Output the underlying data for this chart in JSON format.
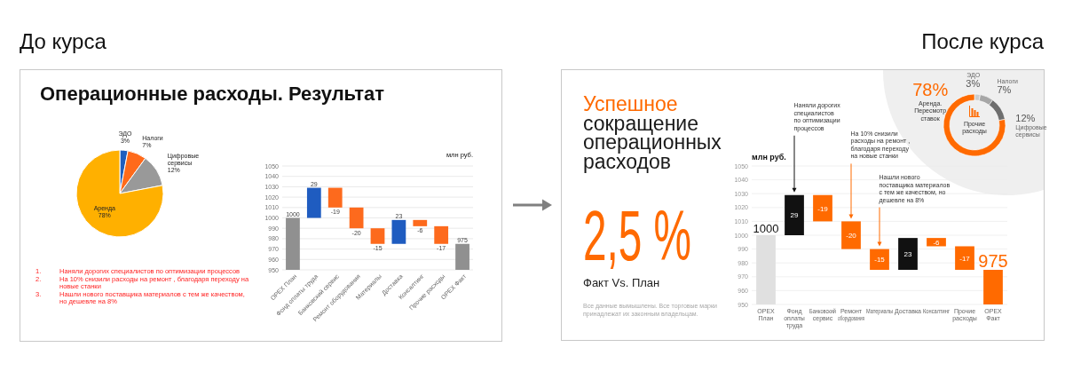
{
  "chart_data": [
    {
      "type": "pie",
      "title": "Операционные расходы. Результат",
      "categories": [
        "ЭДО",
        "Налоги",
        "Цифровые сервисы",
        "Аренда"
      ],
      "values": [
        3,
        7,
        12,
        78
      ],
      "colors": [
        "#1f5fbf",
        "#ff6a1a",
        "#999999",
        "#ffb000"
      ],
      "value_labels": [
        "3%",
        "7%",
        "12%",
        "78%"
      ],
      "annotations": [
        "До курса",
        "1. Наняли дорогих специалистов по оптимизации процессов",
        "2. На 10% снизили расходы на ремонт , благодаря переходу на\nновые станки",
        "3. Нашли нового поставщика материалов с тем же качеством,\nно дешевле на 8%"
      ]
    },
    {
      "type": "bar",
      "categories": [
        "OPEX План",
        "Фонд оплаты труда",
        "Банковский сервис",
        "Ремонт оборудования",
        "Материалы",
        "Доставка",
        "Консалтинг",
        "Прочие расходы",
        "OPEX Факт"
      ],
      "values": [
        1000,
        29,
        -19,
        -20,
        -15,
        23,
        -6,
        -17,
        975
      ],
      "base": [
        null,
        1000,
        1029,
        1010,
        990,
        975,
        998,
        992,
        null
      ],
      "colors": [
        "#909090",
        "#1f5cc0",
        "#fd6a1d",
        "#fd6a1d",
        "#fd6a1d",
        "#1f5cc0",
        "#fd6a1d",
        "#fd6a1d",
        "#909090"
      ],
      "ylim": [
        950,
        1050
      ],
      "yticks": [
        950,
        960,
        970,
        980,
        990,
        1000,
        1010,
        1020,
        1030,
        1040,
        1050
      ],
      "grid": "y",
      "ylabel": "млн руб.",
      "data_labels": true
    },
    {
      "type": "bar",
      "title": "Успешное\nсокращение\nоперационных\nрасходов",
      "categories": [
        "OPEX План",
        "Фонд оплаты труда",
        "Банковский сервис",
        "Ремонт оборудования",
        "Материалы",
        "Доставка",
        "Консалтинг",
        "Прочие расходы",
        "OPEX Факт"
      ],
      "values": [
        1000,
        29,
        -19,
        -20,
        -15,
        23,
        -6,
        -17,
        975
      ],
      "base": [
        null,
        1000,
        1029,
        1010,
        990,
        975,
        998,
        992,
        null
      ],
      "colors": [
        "#e0e0e0",
        "#111111",
        "#ff6a00",
        "#ff6a00",
        "#ff6a00",
        "#111111",
        "#ff6a00",
        "#ff6a00",
        "#ff6a00"
      ],
      "ylim": [
        950,
        1050
      ],
      "yticks": [
        950,
        960,
        970,
        980,
        990,
        1000,
        1010,
        1020,
        1030,
        1040,
        1050
      ],
      "grid": "y",
      "ylabel": "млн руб.",
      "data_labels": true,
      "annotations": [
        "После курса",
        "2,5 %",
        "Факт Vs. План",
        "Все данные вымышлены. Все торговые марки\nпринадлежат их законным владельцам.",
        {
          "text": "Наняли дорогих\nспециалистов\nпо оптимизации\nпроцессов",
          "x": "Фонд оплаты труда",
          "y": 1029
        },
        {
          "text": "На 10% снизили\nрасходы на ремонт ,\nблагодаря переходу\nна новые станки",
          "x": "Ремонт оборудования",
          "y": 1010
        },
        {
          "text": "Нашли нового\nпоставщика материалов\nс тем же качеством, но\nдешевле на 8%",
          "x": "Материалы",
          "y": 990
        }
      ]
    },
    {
      "type": "donut",
      "title": "Прочие расходы",
      "categories": [
        "ЭДО",
        "Налоги",
        "Цифровые сервисы",
        "Аренда. Пересмотр ставок"
      ],
      "values": [
        3,
        7,
        12,
        78
      ],
      "colors": [
        "#cccccc",
        "#a6a6a6",
        "#6e6e6e",
        "#ff6a00"
      ],
      "value_labels": [
        "3%",
        "7%",
        "12%",
        "78%"
      ]
    }
  ]
}
